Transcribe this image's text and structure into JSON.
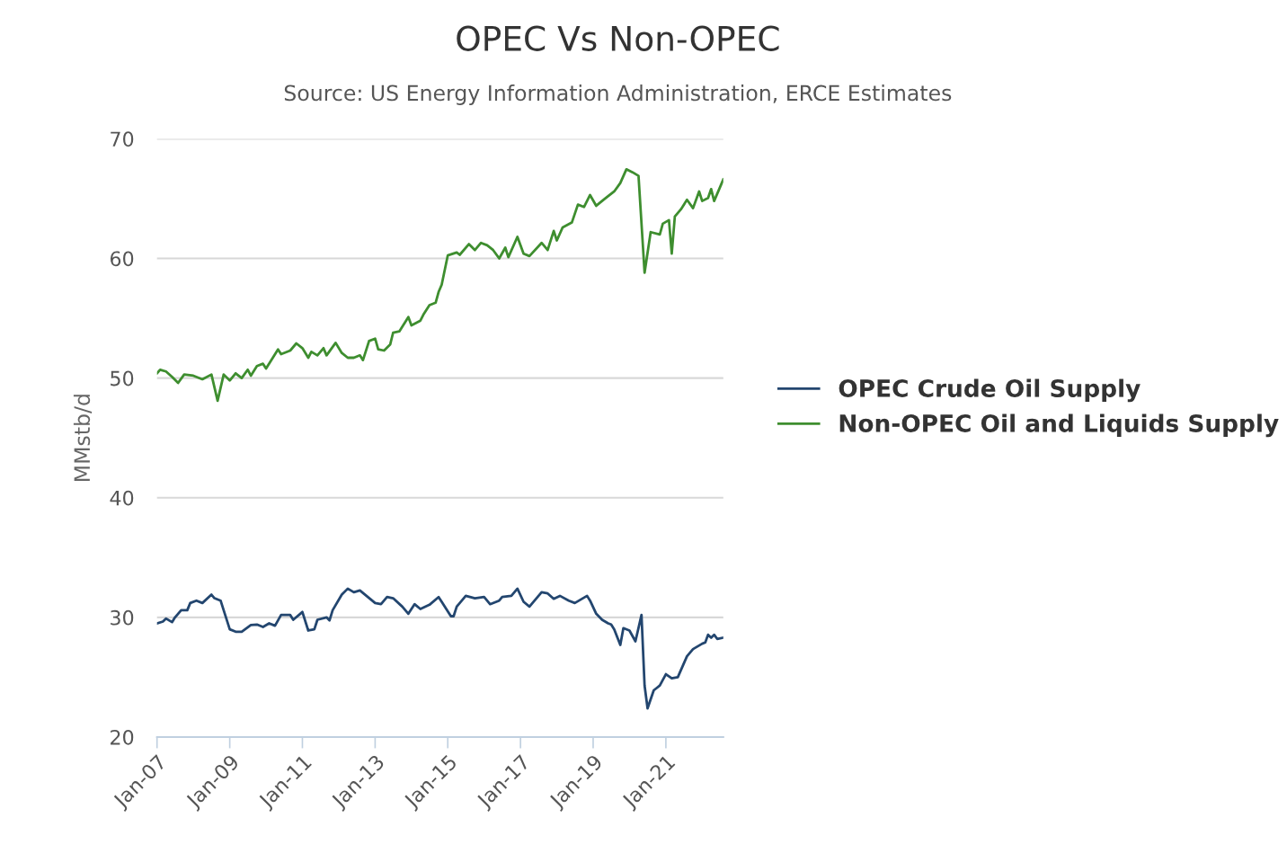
{
  "chart_data": {
    "type": "line",
    "title": "OPEC Vs Non-OPEC",
    "subtitle": "Source: US Energy Information Administration, ERCE Estimates",
    "ylabel": "MMstb/d",
    "xlim": [
      "2007-01",
      "2022-08"
    ],
    "xticks": [
      {
        "value": "2007-01",
        "label": "Jan-07"
      },
      {
        "value": "2009-01",
        "label": "Jan-09"
      },
      {
        "value": "2011-01",
        "label": "Jan-11"
      },
      {
        "value": "2013-01",
        "label": "Jan-13"
      },
      {
        "value": "2015-01",
        "label": "Jan-15"
      },
      {
        "value": "2017-01",
        "label": "Jan-17"
      },
      {
        "value": "2019-01",
        "label": "Jan-19"
      },
      {
        "value": "2021-01",
        "label": "Jan-21"
      }
    ],
    "ylim": [
      20,
      70
    ],
    "yticks": [
      20,
      30,
      40,
      50,
      60,
      70
    ],
    "grid": "y",
    "legend": "right",
    "marker": "none",
    "line_style": "solid",
    "series": [
      {
        "name": "OPEC Crude Oil Supply",
        "color": "#23466f",
        "x": [
          "2007-01",
          "2007-03",
          "2007-04",
          "2007-06",
          "2007-07",
          "2007-09",
          "2007-11",
          "2007-12",
          "2008-02",
          "2008-04",
          "2008-07",
          "2008-08",
          "2008-10",
          "2009-01",
          "2009-03",
          "2009-05",
          "2009-08",
          "2009-10",
          "2009-12",
          "2010-02",
          "2010-04",
          "2010-06",
          "2010-09",
          "2010-10",
          "2011-01",
          "2011-03",
          "2011-05",
          "2011-06",
          "2011-09",
          "2011-10",
          "2011-11",
          "2012-02",
          "2012-04",
          "2012-06",
          "2012-08",
          "2013-01",
          "2013-03",
          "2013-05",
          "2013-07",
          "2013-10",
          "2013-12",
          "2014-02",
          "2014-04",
          "2014-07",
          "2014-10",
          "2014-11",
          "2015-02",
          "2015-03",
          "2015-04",
          "2015-07",
          "2015-10",
          "2016-01",
          "2016-03",
          "2016-06",
          "2016-07",
          "2016-10",
          "2016-12",
          "2017-02",
          "2017-04",
          "2017-08",
          "2017-10",
          "2017-12",
          "2018-02",
          "2018-05",
          "2018-07",
          "2018-11",
          "2018-12",
          "2019-02",
          "2019-04",
          "2019-06",
          "2019-07",
          "2019-08",
          "2019-10",
          "2019-11",
          "2020-01",
          "2020-03",
          "2020-05",
          "2020-06",
          "2020-07",
          "2020-09",
          "2020-11",
          "2021-01",
          "2021-03",
          "2021-05",
          "2021-08",
          "2021-10",
          "2022-01",
          "2022-02",
          "2022-03",
          "2022-04",
          "2022-05",
          "2022-06",
          "2022-08"
        ],
        "values": [
          29.5,
          29.65,
          29.9,
          29.6,
          30.0,
          30.6,
          30.6,
          31.2,
          31.4,
          31.2,
          31.9,
          31.6,
          31.4,
          29.0,
          28.8,
          28.8,
          29.35,
          29.4,
          29.2,
          29.5,
          29.3,
          30.2,
          30.2,
          29.8,
          30.45,
          28.9,
          29.0,
          29.8,
          30.0,
          29.75,
          30.6,
          31.9,
          32.4,
          32.1,
          32.25,
          31.2,
          31.1,
          31.7,
          31.6,
          30.9,
          30.3,
          31.1,
          30.7,
          31.05,
          31.7,
          31.3,
          30.1,
          30.1,
          30.9,
          31.8,
          31.6,
          31.7,
          31.1,
          31.4,
          31.7,
          31.8,
          32.4,
          31.3,
          30.9,
          32.1,
          32.0,
          31.55,
          31.8,
          31.4,
          31.2,
          31.8,
          31.4,
          30.3,
          29.8,
          29.5,
          29.4,
          29.0,
          27.7,
          29.1,
          28.9,
          28.0,
          30.2,
          24.3,
          22.4,
          23.9,
          24.3,
          25.25,
          24.9,
          25.0,
          26.75,
          27.35,
          27.8,
          27.9,
          28.55,
          28.3,
          28.55,
          28.2,
          28.3
        ]
      },
      {
        "name": "Non-OPEC Oil and Liquids Supply",
        "color": "#3e8e2f",
        "x": [
          "2007-01",
          "2007-02",
          "2007-04",
          "2007-06",
          "2007-08",
          "2007-10",
          "2008-01",
          "2008-04",
          "2008-07",
          "2008-09",
          "2008-11",
          "2009-01",
          "2009-03",
          "2009-05",
          "2009-07",
          "2009-08",
          "2009-10",
          "2009-12",
          "2010-01",
          "2010-05",
          "2010-06",
          "2010-09",
          "2010-11",
          "2011-01",
          "2011-03",
          "2011-04",
          "2011-06",
          "2011-08",
          "2011-09",
          "2011-12",
          "2012-02",
          "2012-04",
          "2012-06",
          "2012-08",
          "2012-09",
          "2012-11",
          "2013-01",
          "2013-02",
          "2013-04",
          "2013-06",
          "2013-07",
          "2013-09",
          "2013-12",
          "2014-01",
          "2014-04",
          "2014-05",
          "2014-07",
          "2014-09",
          "2014-10",
          "2014-11",
          "2015-01",
          "2015-04",
          "2015-05",
          "2015-08",
          "2015-10",
          "2015-12",
          "2016-02",
          "2016-04",
          "2016-06",
          "2016-08",
          "2016-09",
          "2016-12",
          "2017-02",
          "2017-04",
          "2017-08",
          "2017-10",
          "2017-12",
          "2018-01",
          "2018-03",
          "2018-06",
          "2018-08",
          "2018-10",
          "2018-12",
          "2019-02",
          "2019-05",
          "2019-08",
          "2019-10",
          "2019-12",
          "2020-02",
          "2020-04",
          "2020-06",
          "2020-08",
          "2020-11",
          "2020-12",
          "2021-02",
          "2021-03",
          "2021-04",
          "2021-06",
          "2021-08",
          "2021-10",
          "2021-12",
          "2022-01",
          "2022-03",
          "2022-04",
          "2022-05",
          "2022-08"
        ],
        "values": [
          50.4,
          50.7,
          50.55,
          50.1,
          49.6,
          50.3,
          50.2,
          49.9,
          50.3,
          48.1,
          50.3,
          49.8,
          50.4,
          50.0,
          50.7,
          50.2,
          51.0,
          51.2,
          50.8,
          52.4,
          52.0,
          52.3,
          52.9,
          52.5,
          51.7,
          52.2,
          51.9,
          52.5,
          51.9,
          52.95,
          52.1,
          51.7,
          51.7,
          51.9,
          51.5,
          53.1,
          53.3,
          52.4,
          52.3,
          52.8,
          53.8,
          53.9,
          55.1,
          54.4,
          54.8,
          55.3,
          56.1,
          56.3,
          57.2,
          57.8,
          60.25,
          60.5,
          60.3,
          61.2,
          60.7,
          61.3,
          61.1,
          60.7,
          60.0,
          60.9,
          60.1,
          61.8,
          60.4,
          60.2,
          61.3,
          60.7,
          62.3,
          61.5,
          62.6,
          63.0,
          64.5,
          64.3,
          65.3,
          64.4,
          65.0,
          65.6,
          66.3,
          67.45,
          67.2,
          66.9,
          58.8,
          62.2,
          62.0,
          62.9,
          63.2,
          60.4,
          63.5,
          64.1,
          64.9,
          64.2,
          65.6,
          64.8,
          65.05,
          65.8,
          64.8,
          66.6
        ]
      }
    ]
  }
}
